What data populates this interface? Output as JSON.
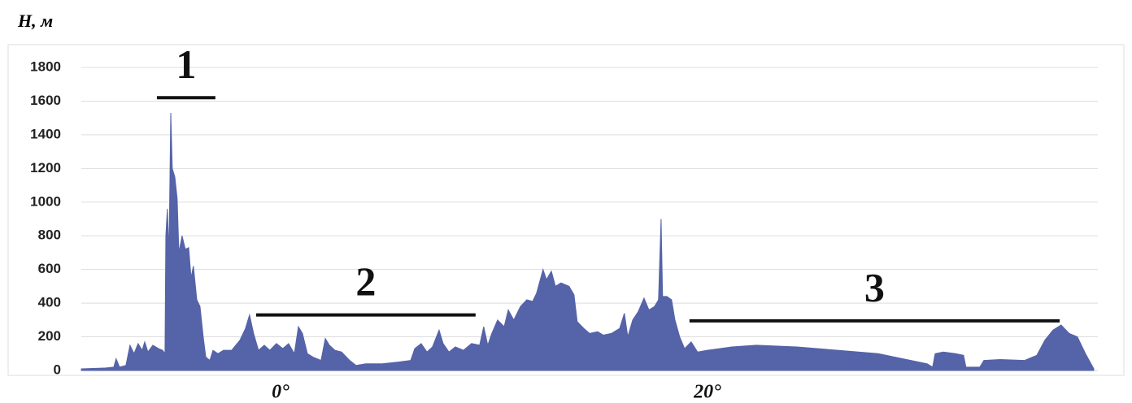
{
  "chart_data": {
    "type": "area",
    "y_label": "H, м",
    "color": "#5563a8",
    "x": [
      -9.33,
      -8.19,
      -7.81,
      -7.7,
      -7.54,
      -7.24,
      -7.05,
      -6.86,
      -6.67,
      -6.48,
      -6.36,
      -6.21,
      -5.98,
      -5.71,
      -5.52,
      -5.41,
      -5.37,
      -5.3,
      -5.22,
      -5.14,
      -5.07,
      -4.95,
      -4.84,
      -4.76,
      -4.61,
      -4.46,
      -4.3,
      -4.19,
      -4.08,
      -3.92,
      -3.77,
      -3.62,
      -3.5,
      -3.31,
      -3.16,
      -2.93,
      -2.67,
      -2.29,
      -1.9,
      -1.64,
      -1.45,
      -1.26,
      -1.03,
      -0.76,
      -0.5,
      -0.19,
      0.11,
      0.38,
      0.65,
      0.84,
      1.03,
      1.26,
      1.52,
      1.9,
      2.1,
      2.29,
      2.55,
      2.86,
      3.24,
      3.54,
      4.0,
      4.76,
      5.52,
      6.1,
      6.29,
      6.59,
      6.86,
      7.12,
      7.43,
      7.62,
      7.89,
      8.19,
      8.57,
      8.95,
      9.33,
      9.52,
      9.71,
      9.9,
      10.17,
      10.48,
      10.67,
      10.93,
      11.24,
      11.54,
      11.81,
      12.0,
      12.3,
      12.46,
      12.69,
      12.88,
      13.14,
      13.52,
      13.75,
      13.9,
      14.21,
      14.48,
      14.86,
      15.12,
      15.5,
      15.89,
      16.11,
      16.27,
      16.5,
      16.76,
      17.03,
      17.26,
      17.52,
      17.71,
      17.83,
      17.9,
      18.1,
      18.32,
      18.48,
      18.7,
      18.93,
      19.24,
      19.54,
      20.0,
      21.14,
      22.29,
      24.19,
      26.1,
      28.0,
      29.14,
      30.29,
      30.55,
      30.67,
      31.05,
      31.62,
      32.0,
      32.11,
      32.76,
      32.95,
      33.71,
      34.86,
      35.43,
      35.81,
      36.19,
      36.57,
      36.95,
      37.33,
      37.71,
      38.1
    ],
    "values": [
      10,
      15,
      20,
      70,
      20,
      30,
      150,
      100,
      160,
      120,
      170,
      110,
      150,
      130,
      120,
      100,
      800,
      960,
      700,
      1530,
      1200,
      1150,
      1020,
      700,
      800,
      720,
      730,
      550,
      620,
      420,
      380,
      200,
      80,
      60,
      120,
      100,
      120,
      120,
      180,
      250,
      330,
      220,
      120,
      150,
      120,
      160,
      130,
      160,
      100,
      260,
      220,
      100,
      80,
      60,
      190,
      150,
      120,
      110,
      60,
      30,
      40,
      40,
      50,
      60,
      130,
      160,
      110,
      140,
      240,
      160,
      110,
      140,
      120,
      160,
      150,
      260,
      150,
      220,
      300,
      260,
      360,
      300,
      380,
      420,
      410,
      460,
      600,
      540,
      590,
      500,
      520,
      500,
      450,
      290,
      250,
      220,
      230,
      210,
      220,
      250,
      340,
      200,
      300,
      350,
      430,
      360,
      380,
      420,
      900,
      440,
      440,
      420,
      300,
      200,
      130,
      170,
      110,
      120,
      140,
      150,
      140,
      120,
      100,
      70,
      40,
      20,
      100,
      110,
      100,
      90,
      20,
      20,
      60,
      65,
      60,
      90,
      180,
      240,
      270,
      220,
      200,
      100,
      10
    ],
    "xlim": [
      -9.33,
      38.1
    ],
    "xticks": [
      {
        "value": 0,
        "label": "0°"
      },
      {
        "value": 20,
        "label": "20°"
      }
    ],
    "ylim": [
      0,
      1800
    ],
    "yticks": [
      0,
      200,
      400,
      600,
      800,
      1000,
      1200,
      1400,
      1600,
      1800
    ],
    "grid": true,
    "annotations": [
      {
        "label": "1",
        "x": [
          -5.79,
          -3.05
        ],
        "y": 1620
      },
      {
        "label": "2",
        "x": [
          -1.14,
          9.14
        ],
        "y": 330
      },
      {
        "label": "3",
        "x": [
          19.16,
          36.5
        ],
        "y": 295
      }
    ]
  }
}
